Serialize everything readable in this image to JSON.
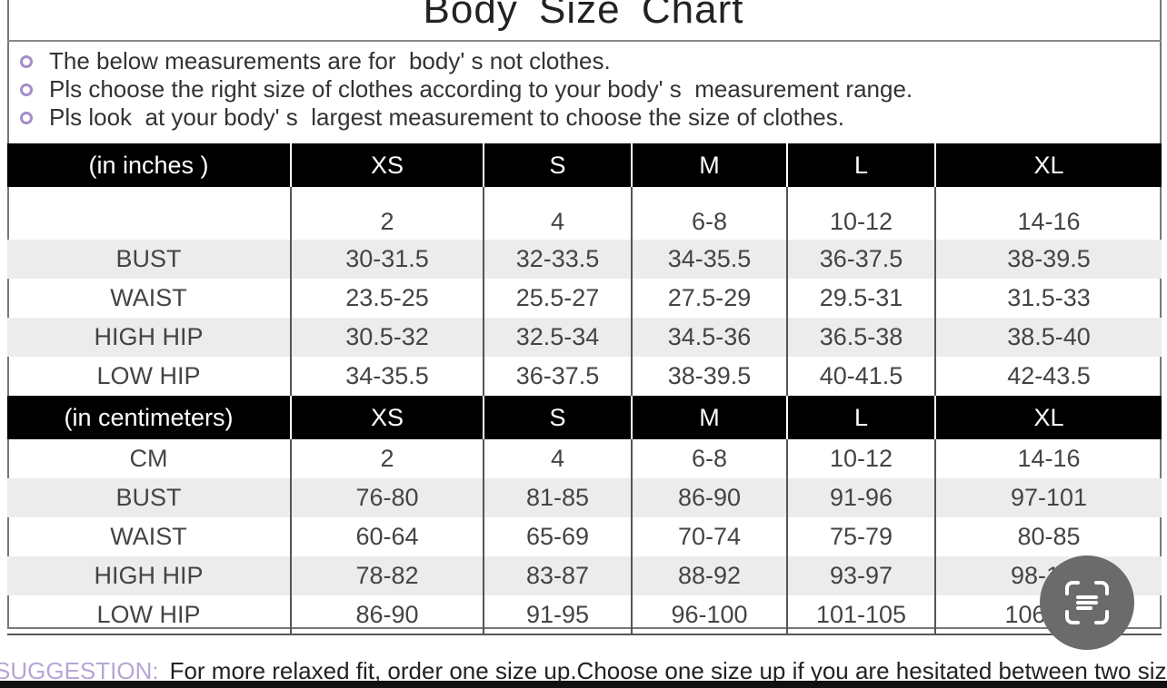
{
  "title": "Body  Size  Chart",
  "notes": [
    "The below measurements are for  body' s not clothes.",
    "Pls choose the right size of clothes according to your body' s  measurement range.",
    "Pls look  at your body' s  largest measurement to choose the size of clothes."
  ],
  "sizes": [
    "XS",
    "S",
    "M",
    "L",
    "XL"
  ],
  "inches": {
    "header": "(in  inches )",
    "rows": [
      {
        "label": "",
        "values": [
          "2",
          "4",
          "6-8",
          "10-12",
          "14-16"
        ]
      },
      {
        "label": "BUST",
        "values": [
          "30-31.5",
          "32-33.5",
          "34-35.5",
          "36-37.5",
          "38-39.5"
        ]
      },
      {
        "label": "WAIST",
        "values": [
          "23.5-25",
          "25.5-27",
          "27.5-29",
          "29.5-31",
          "31.5-33"
        ]
      },
      {
        "label": "HIGH HIP",
        "values": [
          "30.5-32",
          "32.5-34",
          "34.5-36",
          "36.5-38",
          "38.5-40"
        ]
      },
      {
        "label": "LOW HIP",
        "values": [
          "34-35.5",
          "36-37.5",
          "38-39.5",
          "40-41.5",
          "42-43.5"
        ]
      }
    ]
  },
  "centimeters": {
    "header": "(in centimeters)",
    "rows": [
      {
        "label": "CM",
        "values": [
          "2",
          "4",
          "6-8",
          "10-12",
          "14-16"
        ]
      },
      {
        "label": "BUST",
        "values": [
          "76-80",
          "81-85",
          "86-90",
          "91-96",
          "97-101"
        ]
      },
      {
        "label": "WAIST",
        "values": [
          "60-64",
          "65-69",
          "70-74",
          "75-79",
          "80-85"
        ]
      },
      {
        "label": "HIGH HIP",
        "values": [
          "78-82",
          "83-87",
          "88-92",
          "93-97",
          "98-102"
        ]
      },
      {
        "label": "LOW HIP",
        "values": [
          "86-90",
          "91-95",
          "96-100",
          "101-105",
          "106-110"
        ]
      }
    ]
  },
  "suggestion": {
    "label": "SUGGESTION:",
    "text": "For more relaxed fit, order one size up.Choose one size up if you are hesitated between two sizes"
  },
  "scan_button": {
    "icon": "scan-text-icon"
  },
  "colors": {
    "bullet": "#a58dc9",
    "header_bg": "#000000",
    "stripe": "#ececec",
    "scan_button": "#6b6b6b"
  }
}
